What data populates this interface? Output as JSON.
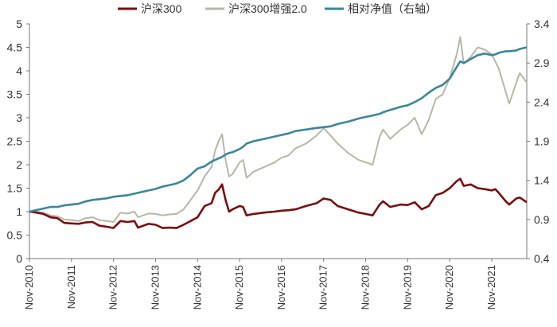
{
  "chart_data": {
    "type": "line",
    "title": "",
    "legend_position": "top",
    "grid": false,
    "x_ticks": [
      "Nov-2010",
      "Nov-2011",
      "Nov-2012",
      "Nov-2013",
      "Nov-2014",
      "Nov-2015",
      "Nov-2016",
      "Nov-2017",
      "Nov-2018",
      "Nov-2019",
      "Nov-2020",
      "Nov-2021"
    ],
    "x_range": [
      "Nov-2010",
      "Sep-2022"
    ],
    "y_left": {
      "range": [
        0,
        5
      ],
      "ticks": [
        "0",
        "0.5",
        "1",
        "1.5",
        "2",
        "2.5",
        "3",
        "3.5",
        "4",
        "4.5",
        "5"
      ]
    },
    "y_right": {
      "range": [
        0.4,
        3.4
      ],
      "ticks": [
        "0.4",
        "0.9",
        "1.4",
        "1.9",
        "2.4",
        "2.9",
        "3.4"
      ]
    },
    "series": [
      {
        "name": "沪深300",
        "axis": "left",
        "color": "#7B0D0D",
        "points": [
          [
            "2010-11",
            1.0
          ],
          [
            "2011-01",
            0.98
          ],
          [
            "2011-03",
            0.95
          ],
          [
            "2011-05",
            0.88
          ],
          [
            "2011-07",
            0.86
          ],
          [
            "2011-09",
            0.76
          ],
          [
            "2011-11",
            0.75
          ],
          [
            "2012-01",
            0.74
          ],
          [
            "2012-03",
            0.77
          ],
          [
            "2012-05",
            0.78
          ],
          [
            "2012-07",
            0.7
          ],
          [
            "2012-09",
            0.68
          ],
          [
            "2012-11",
            0.65
          ],
          [
            "2013-01",
            0.8
          ],
          [
            "2013-03",
            0.78
          ],
          [
            "2013-05",
            0.8
          ],
          [
            "2013-06",
            0.66
          ],
          [
            "2013-09",
            0.74
          ],
          [
            "2013-11",
            0.72
          ],
          [
            "2014-01",
            0.65
          ],
          [
            "2014-03",
            0.66
          ],
          [
            "2014-05",
            0.65
          ],
          [
            "2014-07",
            0.72
          ],
          [
            "2014-09",
            0.8
          ],
          [
            "2014-11",
            0.88
          ],
          [
            "2015-01",
            1.12
          ],
          [
            "2015-03",
            1.18
          ],
          [
            "2015-04",
            1.4
          ],
          [
            "2015-05",
            1.47
          ],
          [
            "2015-06",
            1.58
          ],
          [
            "2015-07",
            1.25
          ],
          [
            "2015-08",
            1.0
          ],
          [
            "2015-09",
            1.05
          ],
          [
            "2015-11",
            1.12
          ],
          [
            "2015-12",
            1.1
          ],
          [
            "2016-01",
            0.92
          ],
          [
            "2016-03",
            0.95
          ],
          [
            "2016-06",
            0.98
          ],
          [
            "2016-09",
            1.0
          ],
          [
            "2016-11",
            1.02
          ],
          [
            "2017-01",
            1.03
          ],
          [
            "2017-03",
            1.05
          ],
          [
            "2017-06",
            1.12
          ],
          [
            "2017-09",
            1.18
          ],
          [
            "2017-11",
            1.28
          ],
          [
            "2018-01",
            1.25
          ],
          [
            "2018-03",
            1.12
          ],
          [
            "2018-06",
            1.05
          ],
          [
            "2018-09",
            0.98
          ],
          [
            "2018-11",
            0.95
          ],
          [
            "2019-01",
            0.92
          ],
          [
            "2019-03",
            1.15
          ],
          [
            "2019-04",
            1.22
          ],
          [
            "2019-06",
            1.1
          ],
          [
            "2019-09",
            1.15
          ],
          [
            "2019-11",
            1.14
          ],
          [
            "2020-01",
            1.2
          ],
          [
            "2020-03",
            1.05
          ],
          [
            "2020-05",
            1.12
          ],
          [
            "2020-07",
            1.35
          ],
          [
            "2020-09",
            1.4
          ],
          [
            "2020-11",
            1.5
          ],
          [
            "2021-01",
            1.65
          ],
          [
            "2021-02",
            1.7
          ],
          [
            "2021-03",
            1.55
          ],
          [
            "2021-05",
            1.58
          ],
          [
            "2021-07",
            1.5
          ],
          [
            "2021-09",
            1.48
          ],
          [
            "2021-11",
            1.45
          ],
          [
            "2021-12",
            1.48
          ],
          [
            "2022-01",
            1.4
          ],
          [
            "2022-03",
            1.22
          ],
          [
            "2022-04",
            1.15
          ],
          [
            "2022-06",
            1.28
          ],
          [
            "2022-07",
            1.3
          ],
          [
            "2022-09",
            1.2
          ]
        ]
      },
      {
        "name": "沪深300增强2.0",
        "axis": "left",
        "color": "#B7B7A6",
        "points": [
          [
            "2010-11",
            1.0
          ],
          [
            "2011-01",
            1.0
          ],
          [
            "2011-03",
            0.98
          ],
          [
            "2011-05",
            0.92
          ],
          [
            "2011-07",
            0.9
          ],
          [
            "2011-09",
            0.83
          ],
          [
            "2011-11",
            0.82
          ],
          [
            "2012-01",
            0.8
          ],
          [
            "2012-03",
            0.86
          ],
          [
            "2012-05",
            0.88
          ],
          [
            "2012-07",
            0.82
          ],
          [
            "2012-09",
            0.8
          ],
          [
            "2012-11",
            0.78
          ],
          [
            "2013-01",
            0.98
          ],
          [
            "2013-03",
            0.96
          ],
          [
            "2013-05",
            1.0
          ],
          [
            "2013-06",
            0.88
          ],
          [
            "2013-09",
            0.96
          ],
          [
            "2013-11",
            0.95
          ],
          [
            "2014-01",
            0.92
          ],
          [
            "2014-03",
            0.94
          ],
          [
            "2014-05",
            0.95
          ],
          [
            "2014-07",
            1.05
          ],
          [
            "2014-09",
            1.25
          ],
          [
            "2014-11",
            1.45
          ],
          [
            "2015-01",
            1.75
          ],
          [
            "2015-03",
            1.95
          ],
          [
            "2015-04",
            2.3
          ],
          [
            "2015-05",
            2.5
          ],
          [
            "2015-06",
            2.65
          ],
          [
            "2015-07",
            2.1
          ],
          [
            "2015-08",
            1.75
          ],
          [
            "2015-09",
            1.8
          ],
          [
            "2015-11",
            2.05
          ],
          [
            "2015-12",
            2.1
          ],
          [
            "2016-01",
            1.72
          ],
          [
            "2016-03",
            1.85
          ],
          [
            "2016-06",
            1.95
          ],
          [
            "2016-09",
            2.05
          ],
          [
            "2016-11",
            2.15
          ],
          [
            "2017-01",
            2.2
          ],
          [
            "2017-03",
            2.35
          ],
          [
            "2017-06",
            2.45
          ],
          [
            "2017-09",
            2.62
          ],
          [
            "2017-11",
            2.78
          ],
          [
            "2018-01",
            2.62
          ],
          [
            "2018-03",
            2.45
          ],
          [
            "2018-06",
            2.25
          ],
          [
            "2018-09",
            2.1
          ],
          [
            "2018-11",
            2.05
          ],
          [
            "2019-01",
            2.0
          ],
          [
            "2019-03",
            2.6
          ],
          [
            "2019-04",
            2.75
          ],
          [
            "2019-06",
            2.55
          ],
          [
            "2019-09",
            2.75
          ],
          [
            "2019-11",
            2.85
          ],
          [
            "2020-01",
            3.0
          ],
          [
            "2020-03",
            2.65
          ],
          [
            "2020-05",
            2.95
          ],
          [
            "2020-07",
            3.4
          ],
          [
            "2020-09",
            3.5
          ],
          [
            "2020-11",
            3.85
          ],
          [
            "2021-01",
            4.35
          ],
          [
            "2021-02",
            4.72
          ],
          [
            "2021-03",
            4.15
          ],
          [
            "2021-05",
            4.3
          ],
          [
            "2021-07",
            4.5
          ],
          [
            "2021-09",
            4.45
          ],
          [
            "2021-11",
            4.35
          ],
          [
            "2021-12",
            4.2
          ],
          [
            "2022-01",
            4.05
          ],
          [
            "2022-03",
            3.55
          ],
          [
            "2022-04",
            3.3
          ],
          [
            "2022-06",
            3.75
          ],
          [
            "2022-07",
            3.95
          ],
          [
            "2022-09",
            3.75
          ]
        ]
      },
      {
        "name": "相对净值（右轴）",
        "axis": "right",
        "color": "#3A8799",
        "points": [
          [
            "2010-11",
            1.0
          ],
          [
            "2011-01",
            1.02
          ],
          [
            "2011-03",
            1.04
          ],
          [
            "2011-05",
            1.06
          ],
          [
            "2011-07",
            1.06
          ],
          [
            "2011-09",
            1.08
          ],
          [
            "2011-11",
            1.09
          ],
          [
            "2012-01",
            1.1
          ],
          [
            "2012-03",
            1.13
          ],
          [
            "2012-05",
            1.15
          ],
          [
            "2012-07",
            1.16
          ],
          [
            "2012-09",
            1.17
          ],
          [
            "2012-11",
            1.19
          ],
          [
            "2013-01",
            1.2
          ],
          [
            "2013-03",
            1.21
          ],
          [
            "2013-05",
            1.23
          ],
          [
            "2013-06",
            1.24
          ],
          [
            "2013-09",
            1.27
          ],
          [
            "2013-11",
            1.29
          ],
          [
            "2014-01",
            1.32
          ],
          [
            "2014-03",
            1.34
          ],
          [
            "2014-05",
            1.36
          ],
          [
            "2014-07",
            1.4
          ],
          [
            "2014-09",
            1.47
          ],
          [
            "2014-11",
            1.55
          ],
          [
            "2015-01",
            1.58
          ],
          [
            "2015-03",
            1.64
          ],
          [
            "2015-04",
            1.66
          ],
          [
            "2015-05",
            1.68
          ],
          [
            "2015-06",
            1.7
          ],
          [
            "2015-07",
            1.73
          ],
          [
            "2015-08",
            1.75
          ],
          [
            "2015-09",
            1.76
          ],
          [
            "2015-11",
            1.8
          ],
          [
            "2015-12",
            1.83
          ],
          [
            "2016-01",
            1.87
          ],
          [
            "2016-03",
            1.9
          ],
          [
            "2016-06",
            1.93
          ],
          [
            "2016-09",
            1.96
          ],
          [
            "2016-11",
            1.98
          ],
          [
            "2017-01",
            2.0
          ],
          [
            "2017-03",
            2.03
          ],
          [
            "2017-06",
            2.05
          ],
          [
            "2017-09",
            2.07
          ],
          [
            "2017-11",
            2.08
          ],
          [
            "2018-01",
            2.09
          ],
          [
            "2018-03",
            2.12
          ],
          [
            "2018-06",
            2.15
          ],
          [
            "2018-09",
            2.19
          ],
          [
            "2018-11",
            2.21
          ],
          [
            "2019-01",
            2.23
          ],
          [
            "2019-03",
            2.25
          ],
          [
            "2019-04",
            2.27
          ],
          [
            "2019-06",
            2.3
          ],
          [
            "2019-09",
            2.34
          ],
          [
            "2019-11",
            2.36
          ],
          [
            "2020-01",
            2.4
          ],
          [
            "2020-03",
            2.45
          ],
          [
            "2020-05",
            2.52
          ],
          [
            "2020-07",
            2.58
          ],
          [
            "2020-09",
            2.62
          ],
          [
            "2020-11",
            2.7
          ],
          [
            "2021-01",
            2.85
          ],
          [
            "2021-02",
            2.92
          ],
          [
            "2021-03",
            2.9
          ],
          [
            "2021-05",
            2.95
          ],
          [
            "2021-07",
            3.0
          ],
          [
            "2021-09",
            3.02
          ],
          [
            "2021-11",
            3.0
          ],
          [
            "2021-12",
            3.01
          ],
          [
            "2022-01",
            3.03
          ],
          [
            "2022-03",
            3.05
          ],
          [
            "2022-04",
            3.05
          ],
          [
            "2022-06",
            3.06
          ],
          [
            "2022-07",
            3.08
          ],
          [
            "2022-09",
            3.1
          ]
        ]
      }
    ]
  }
}
